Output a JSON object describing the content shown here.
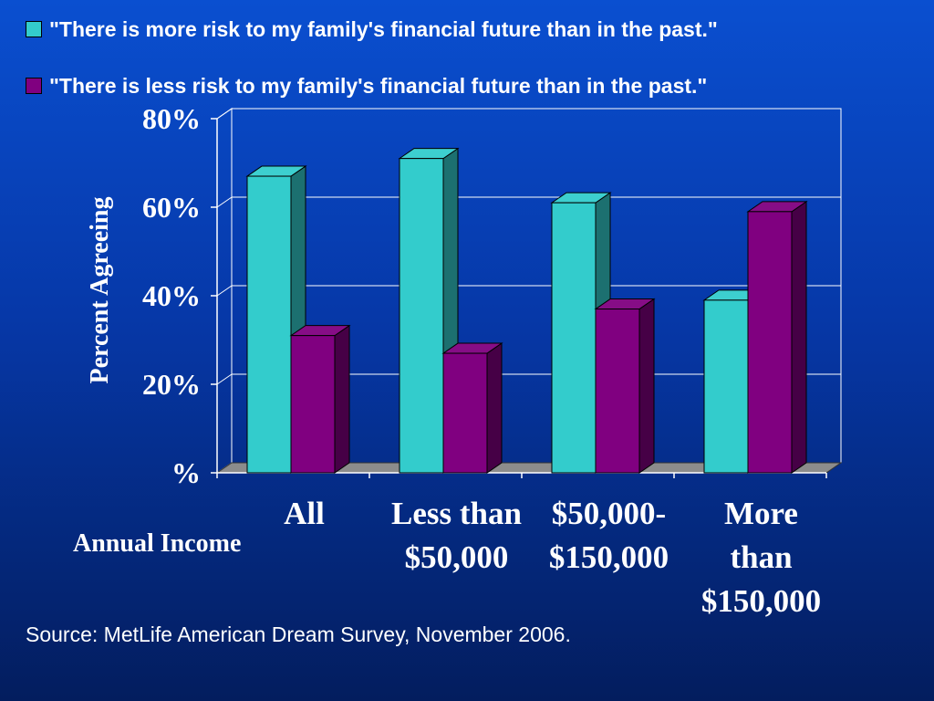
{
  "chart_data": {
    "type": "bar",
    "categories": [
      "All",
      "Less than $50,000",
      "$50,000-$150,000",
      "More than $150,000"
    ],
    "category_lines": [
      [
        "All"
      ],
      [
        "Less than",
        "$50,000"
      ],
      [
        "$50,000-",
        "$150,000"
      ],
      [
        "More",
        "than",
        "$150,000"
      ]
    ],
    "series": [
      {
        "name": "\"There is more risk to my family's financial future than in the past.\"",
        "values": [
          67,
          71,
          61,
          39
        ],
        "color": "#33cccc"
      },
      {
        "name": "\"There is less risk to my family's financial future than in the past.\"",
        "values": [
          31,
          27,
          37,
          59
        ],
        "color": "#800080"
      }
    ],
    "ylabel": "Percent Agreeing",
    "xlabel": "Annual Income",
    "yticks": [
      "%",
      "20%",
      "40%",
      "60%",
      "80%"
    ],
    "ylim": [
      0,
      80
    ],
    "grid": true,
    "legend": "top"
  },
  "source": "Source: MetLife American Dream Survey, November 2006."
}
